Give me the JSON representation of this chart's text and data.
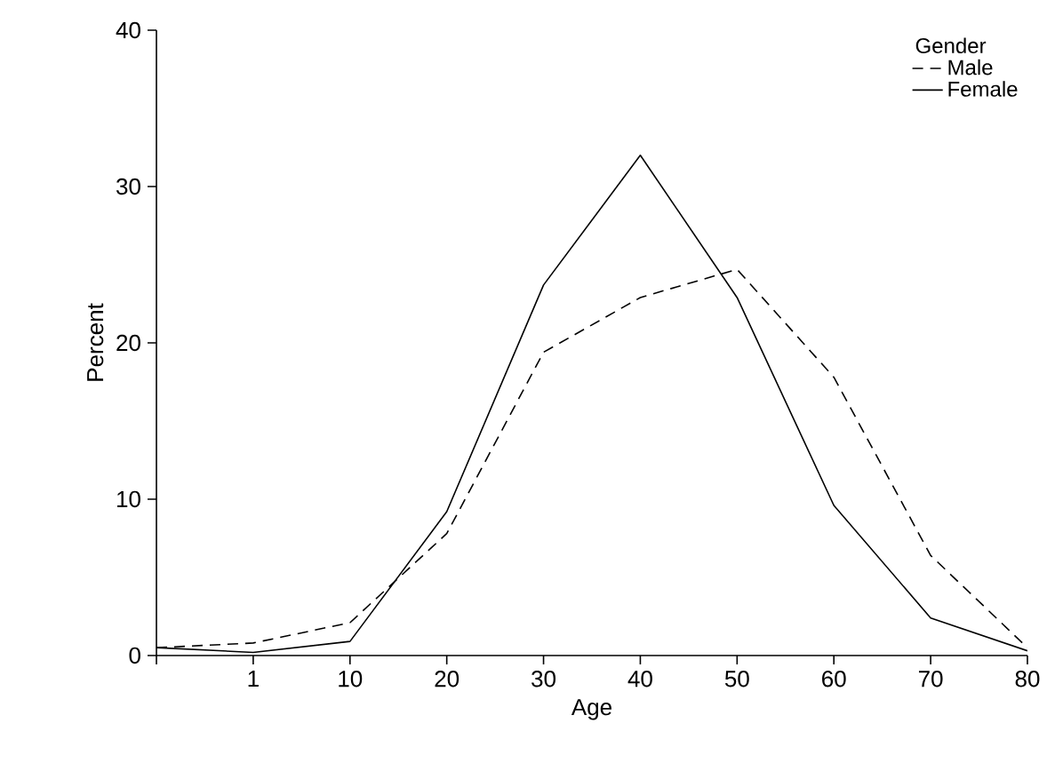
{
  "chart_data": {
    "type": "line",
    "xlabel": "Age",
    "ylabel": "Percent",
    "legend_title": "Gender",
    "legend": "top right",
    "grid": false,
    "marker": "none",
    "categories": [
      null,
      "1",
      "10",
      "20",
      "30",
      "40",
      "50",
      "60",
      "70",
      "80"
    ],
    "ylim": [
      0,
      40
    ],
    "yticks": [
      0,
      10,
      20,
      30,
      40
    ],
    "series": [
      {
        "name": "Male",
        "color": "#000000",
        "line_style": "dashed",
        "values": [
          0.5,
          0.8,
          2.1,
          7.8,
          19.4,
          22.9,
          24.7,
          17.8,
          6.4,
          0.5
        ]
      },
      {
        "name": "Female",
        "color": "#000000",
        "line_style": "solid",
        "values": [
          0.5,
          0.2,
          0.9,
          9.2,
          23.7,
          32.0,
          22.9,
          9.6,
          2.4,
          0.3
        ]
      }
    ]
  }
}
